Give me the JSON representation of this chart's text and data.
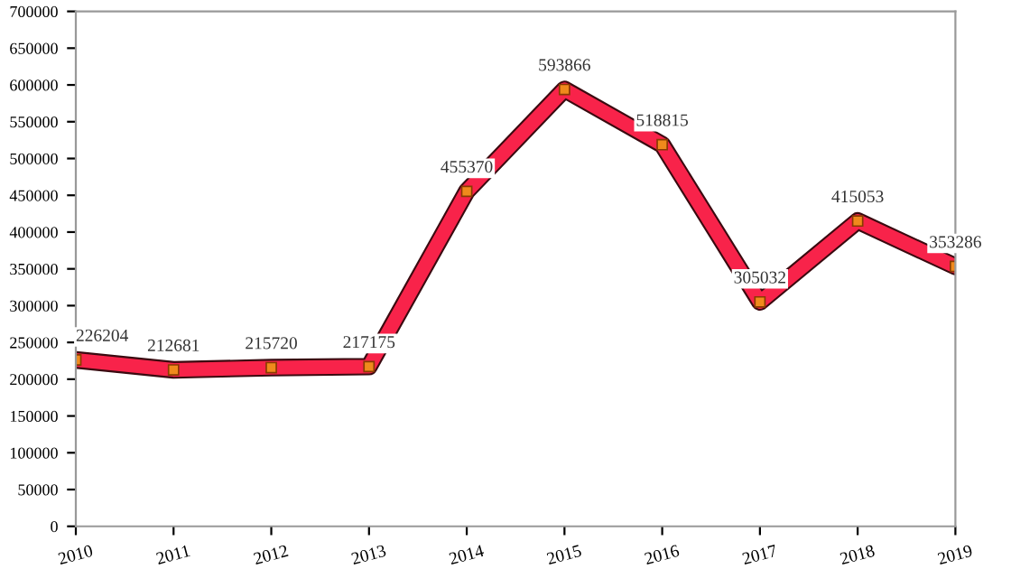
{
  "chart_data": {
    "type": "line",
    "categories": [
      "2010",
      "2011",
      "2012",
      "2013",
      "2014",
      "2015",
      "2016",
      "2017",
      "2018",
      "2019"
    ],
    "series": [
      {
        "color": "#f8234a",
        "values": [
          226204,
          212681,
          215720,
          217175,
          455370,
          593866,
          518815,
          305032,
          415053,
          353286
        ]
      }
    ],
    "ylim": [
      0,
      700000
    ],
    "yticks": [
      0,
      50000,
      100000,
      150000,
      200000,
      250000,
      300000,
      350000,
      400000,
      450000,
      500000,
      550000,
      600000,
      650000,
      700000
    ],
    "data_labels": true,
    "marker": "square",
    "line_style": "solid",
    "grid": false
  }
}
